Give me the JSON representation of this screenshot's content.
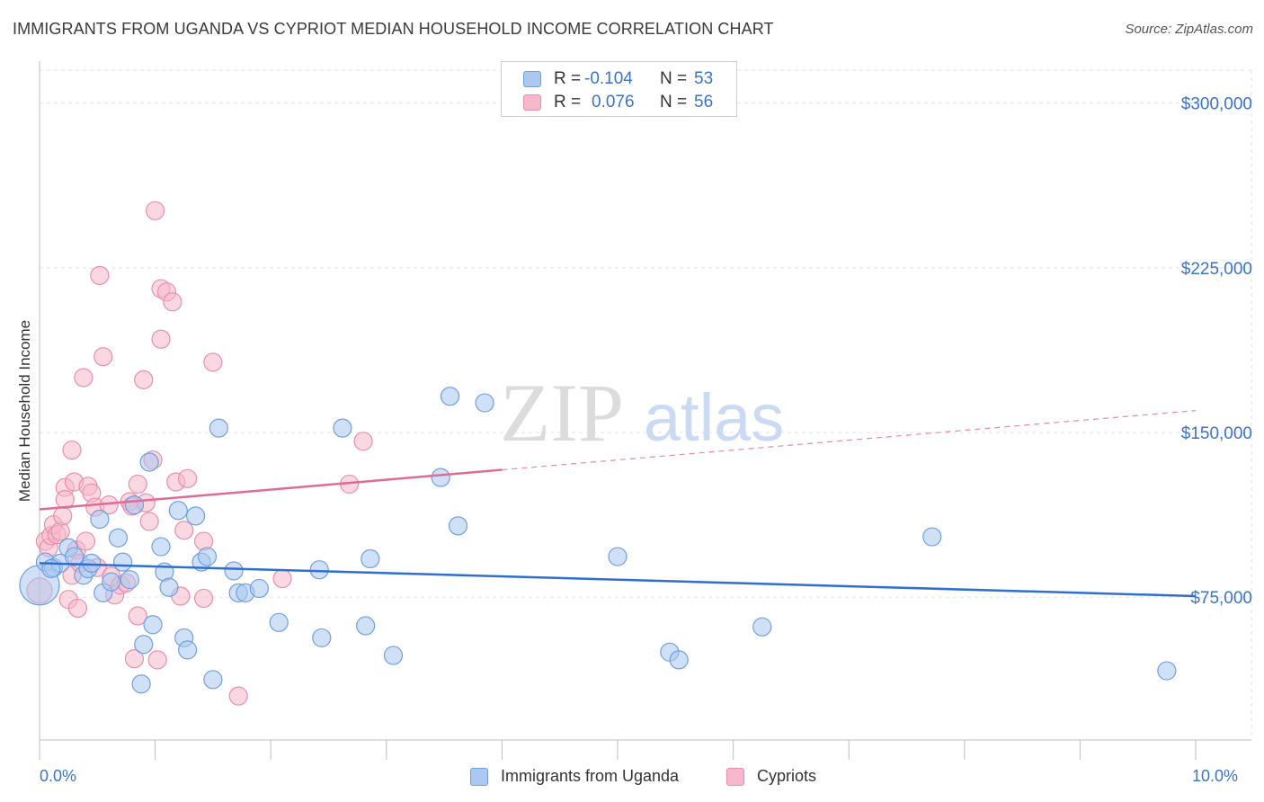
{
  "title": "IMMIGRANTS FROM UGANDA VS CYPRIOT MEDIAN HOUSEHOLD INCOME CORRELATION CHART",
  "source": "Source: ZipAtlas.com",
  "watermark": {
    "zip": "ZIP",
    "atlas": "atlas"
  },
  "legend": {
    "r_label": "R =",
    "n_label": "N =",
    "rows": [
      {
        "r": "-0.104",
        "n": "53"
      },
      {
        "r": "0.076",
        "n": "56"
      }
    ]
  },
  "colors": {
    "blue_fill": "#aac8f0",
    "blue_stroke": "#6f9fe0",
    "blue_line": "#2f6fd0",
    "pink_fill": "#f6b8cb",
    "pink_stroke": "#ea8eaa",
    "pink_line": "#e06b93",
    "axis_text": "#3b73c9",
    "grid": "#e3e3e3"
  },
  "chart_data": {
    "type": "scatter",
    "xlabel": "",
    "ylabel": "Median Household Income",
    "xlim": [
      0,
      10
    ],
    "ylim": [
      10000,
      315000
    ],
    "x_tick_labels": [
      "0.0%",
      "10.0%"
    ],
    "y_ticks": [
      {
        "value": 75000,
        "label": "$75,000"
      },
      {
        "value": 150000,
        "label": "$150,000"
      },
      {
        "value": 225000,
        "label": "$225,000"
      },
      {
        "value": 300000,
        "label": "$300,000"
      }
    ],
    "series": [
      {
        "name": "Immigrants from Uganda",
        "color": "blue",
        "r": -0.104,
        "n": 53,
        "trend": {
          "x0": 0.0,
          "y0": 90500,
          "x1": 10.0,
          "y1": 75500,
          "dash_from": null
        },
        "points": [
          [
            0.0,
            80500,
            22
          ],
          [
            0.05,
            91000,
            10
          ],
          [
            0.12,
            88500,
            10
          ],
          [
            0.18,
            90500,
            10
          ],
          [
            0.25,
            97500,
            10
          ],
          [
            0.3,
            93500,
            10
          ],
          [
            0.38,
            85000,
            10
          ],
          [
            0.42,
            88000,
            10
          ],
          [
            0.45,
            90500,
            10
          ],
          [
            0.52,
            110500,
            10
          ],
          [
            0.55,
            77000,
            10
          ],
          [
            0.62,
            82000,
            10
          ],
          [
            0.68,
            102000,
            10
          ],
          [
            0.72,
            91000,
            10
          ],
          [
            0.78,
            83000,
            10
          ],
          [
            0.82,
            117000,
            10
          ],
          [
            0.88,
            35500,
            10
          ],
          [
            0.9,
            53500,
            10
          ],
          [
            0.95,
            136500,
            10
          ],
          [
            0.98,
            62500,
            10
          ],
          [
            1.05,
            98000,
            10
          ],
          [
            1.08,
            86500,
            10
          ],
          [
            1.12,
            79500,
            10
          ],
          [
            1.2,
            114500,
            10
          ],
          [
            1.25,
            56500,
            10
          ],
          [
            1.28,
            51000,
            10
          ],
          [
            1.35,
            112000,
            10
          ],
          [
            1.4,
            91000,
            10
          ],
          [
            1.45,
            93500,
            10
          ],
          [
            1.5,
            37500,
            10
          ],
          [
            1.55,
            152000,
            10
          ],
          [
            1.68,
            87000,
            10
          ],
          [
            1.72,
            77000,
            10
          ],
          [
            1.78,
            77000,
            10
          ],
          [
            1.9,
            79000,
            10
          ],
          [
            2.07,
            63500,
            10
          ],
          [
            2.42,
            87500,
            10
          ],
          [
            2.44,
            56500,
            10
          ],
          [
            2.62,
            152000,
            10
          ],
          [
            2.82,
            62000,
            10
          ],
          [
            2.86,
            92500,
            10
          ],
          [
            3.06,
            48500,
            10
          ],
          [
            3.47,
            129500,
            10
          ],
          [
            3.55,
            166500,
            10
          ],
          [
            3.62,
            107500,
            10
          ],
          [
            3.85,
            163500,
            10
          ],
          [
            5.0,
            93500,
            10
          ],
          [
            5.45,
            50000,
            10
          ],
          [
            5.53,
            46500,
            10
          ],
          [
            6.25,
            61500,
            10
          ],
          [
            7.72,
            102500,
            10
          ],
          [
            9.75,
            41500,
            10
          ],
          [
            0.1,
            88000,
            10
          ]
        ]
      },
      {
        "name": "Cypriots",
        "color": "pink",
        "r": 0.076,
        "n": 56,
        "trend": {
          "x0": 0.0,
          "y0": 115000,
          "x1": 10.0,
          "y1": 160000,
          "dash_from": 4.0
        },
        "points": [
          [
            0.0,
            78000,
            14
          ],
          [
            0.05,
            100500,
            10
          ],
          [
            0.08,
            97500,
            10
          ],
          [
            0.1,
            103000,
            10
          ],
          [
            0.12,
            108000,
            10
          ],
          [
            0.15,
            103500,
            10
          ],
          [
            0.18,
            105000,
            10
          ],
          [
            0.2,
            112000,
            10
          ],
          [
            0.22,
            125000,
            10
          ],
          [
            0.22,
            119500,
            10
          ],
          [
            0.25,
            74000,
            10
          ],
          [
            0.28,
            85000,
            10
          ],
          [
            0.28,
            142000,
            10
          ],
          [
            0.3,
            127500,
            10
          ],
          [
            0.32,
            96500,
            10
          ],
          [
            0.33,
            70000,
            10
          ],
          [
            0.35,
            90500,
            10
          ],
          [
            0.38,
            175000,
            10
          ],
          [
            0.4,
            100500,
            10
          ],
          [
            0.42,
            125500,
            10
          ],
          [
            0.45,
            122500,
            10
          ],
          [
            0.48,
            116000,
            10
          ],
          [
            0.5,
            88500,
            10
          ],
          [
            0.52,
            221500,
            10
          ],
          [
            0.55,
            184500,
            10
          ],
          [
            0.6,
            117000,
            10
          ],
          [
            0.62,
            84500,
            10
          ],
          [
            0.65,
            76000,
            10
          ],
          [
            0.7,
            80500,
            10
          ],
          [
            0.75,
            81500,
            10
          ],
          [
            0.78,
            118500,
            10
          ],
          [
            0.8,
            116500,
            10
          ],
          [
            0.82,
            47000,
            10
          ],
          [
            0.85,
            126500,
            10
          ],
          [
            0.85,
            66500,
            10
          ],
          [
            0.9,
            174000,
            10
          ],
          [
            0.92,
            118000,
            10
          ],
          [
            0.95,
            109500,
            10
          ],
          [
            0.98,
            137500,
            10
          ],
          [
            1.0,
            251000,
            10
          ],
          [
            1.02,
            46500,
            10
          ],
          [
            1.05,
            215500,
            10
          ],
          [
            1.05,
            192500,
            10
          ],
          [
            1.1,
            214000,
            10
          ],
          [
            1.15,
            209500,
            10
          ],
          [
            1.18,
            127500,
            10
          ],
          [
            1.22,
            75500,
            10
          ],
          [
            1.25,
            105500,
            10
          ],
          [
            1.28,
            129000,
            10
          ],
          [
            1.42,
            74500,
            10
          ],
          [
            1.42,
            100500,
            10
          ],
          [
            1.5,
            182000,
            10
          ],
          [
            1.72,
            30000,
            10
          ],
          [
            2.1,
            83500,
            10
          ],
          [
            2.68,
            126500,
            10
          ],
          [
            2.8,
            146000,
            10
          ]
        ]
      }
    ]
  },
  "bottom_legend": [
    "Immigrants from Uganda",
    "Cypriots"
  ]
}
